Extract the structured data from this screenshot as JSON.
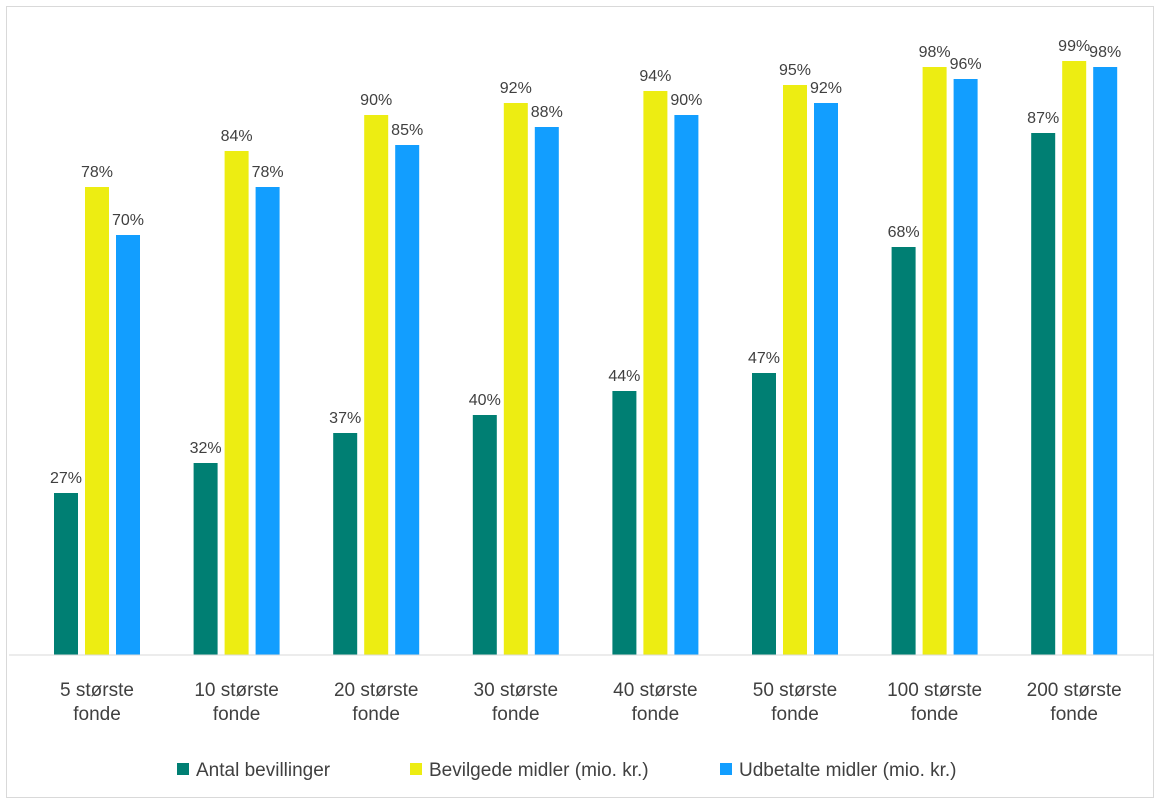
{
  "chart_data": {
    "type": "bar",
    "categories": [
      "5 største fonde",
      "10 største fonde",
      "20 største fonde",
      "30 største fonde",
      "40 største fonde",
      "50 største fonde",
      "100 største fonde",
      "200 største fonde"
    ],
    "category_lines": [
      [
        "5 største",
        "fonde"
      ],
      [
        "10 største",
        "fonde"
      ],
      [
        "20 største",
        "fonde"
      ],
      [
        "30 største",
        "fonde"
      ],
      [
        "40 største",
        "fonde"
      ],
      [
        "50 største",
        "fonde"
      ],
      [
        "100 største",
        "fonde"
      ],
      [
        "200 største",
        "fonde"
      ]
    ],
    "series": [
      {
        "name": "Antal bevillinger",
        "color": "#007f73",
        "values": [
          27,
          32,
          37,
          40,
          44,
          47,
          68,
          87
        ],
        "labels": [
          "27%",
          "32%",
          "37%",
          "40%",
          "44%",
          "47%",
          "68%",
          "87%"
        ]
      },
      {
        "name": "Bevilgede midler (mio. kr.)",
        "color": "#eded12",
        "values": [
          78,
          84,
          90,
          92,
          94,
          95,
          98,
          99
        ],
        "labels": [
          "78%",
          "84%",
          "90%",
          "92%",
          "94%",
          "95%",
          "98%",
          "99%"
        ]
      },
      {
        "name": "Udbetalte midler (mio. kr.)",
        "color": "#129eff",
        "values": [
          70,
          78,
          85,
          88,
          90,
          92,
          96,
          98
        ],
        "labels": [
          "70%",
          "78%",
          "85%",
          "88%",
          "90%",
          "92%",
          "96%",
          "98%"
        ]
      }
    ],
    "ylim": [
      0,
      100
    ],
    "grid": false,
    "legend_position": "bottom"
  }
}
